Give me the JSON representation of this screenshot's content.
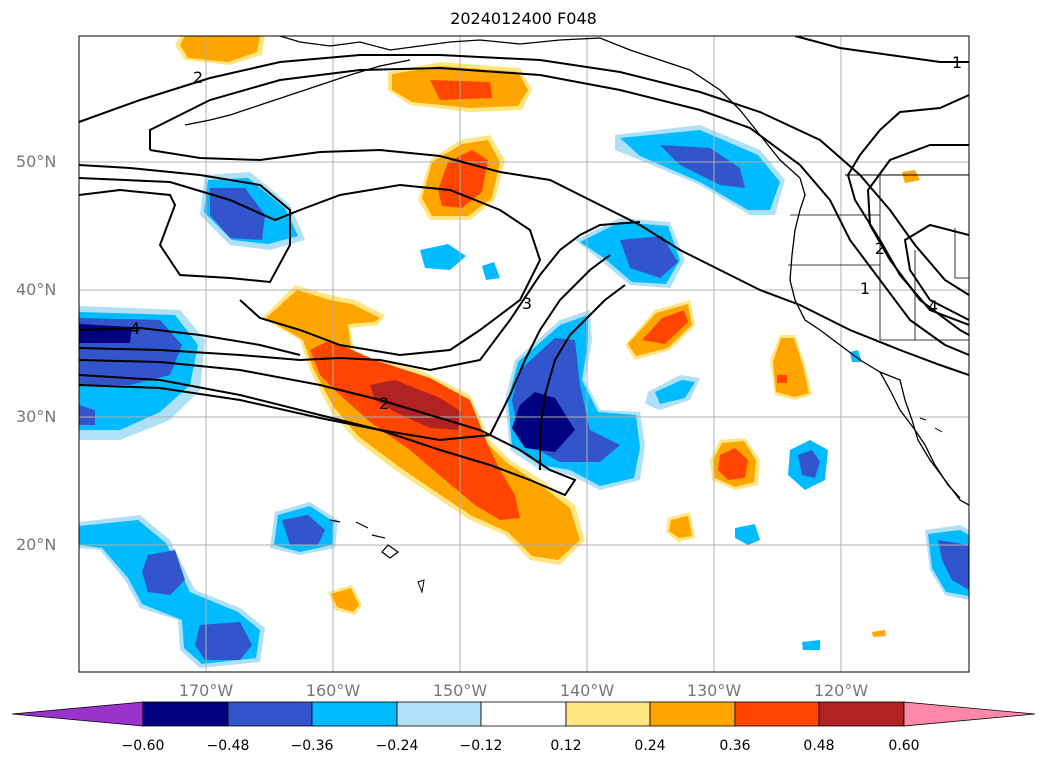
{
  "title": "2024012400 F048",
  "latitude_labels": [
    "50°N",
    "40°N",
    "30°N",
    "20°N"
  ],
  "longitude_labels": [
    "170°W",
    "160°W",
    "150°W",
    "140°W",
    "130°W",
    "120°W"
  ],
  "contour_labels": [
    "2",
    "3",
    "2",
    "4",
    "1",
    "1",
    "4",
    "2"
  ],
  "colorbar": {
    "tick_labels": [
      "−0.60",
      "−0.48",
      "−0.36",
      "−0.24",
      "−0.12",
      "0.12",
      "0.24",
      "0.36",
      "0.48",
      "0.60"
    ],
    "colors": [
      "#9933cc",
      "#000080",
      "#3355cc",
      "#00bbff",
      "#aee0f8",
      "#ffffff",
      "#ffe680",
      "#ffa500",
      "#ff4500",
      "#b22222",
      "#ff88aa"
    ]
  },
  "map": {
    "lat_range": [
      10,
      60
    ],
    "lon_range": [
      -180,
      -110
    ],
    "gridlines": true,
    "region": "North Pacific / Western North America"
  }
}
